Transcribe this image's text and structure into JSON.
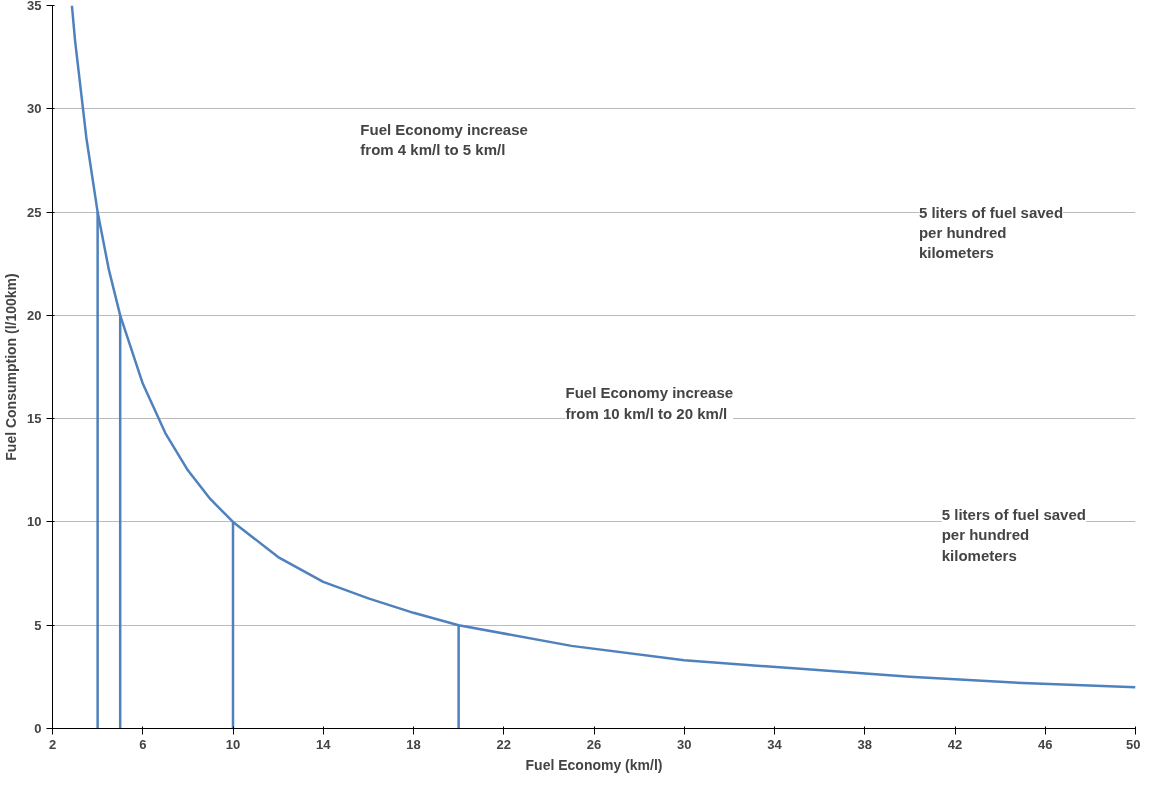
{
  "chart_data": {
    "type": "line",
    "xlabel": "Fuel Economy (km/l)",
    "ylabel": "Fuel Consumption (l/100km)",
    "xlim": [
      2,
      50
    ],
    "xticks": [
      2,
      6,
      10,
      14,
      18,
      22,
      26,
      30,
      34,
      38,
      42,
      46,
      50
    ],
    "ylim": [
      0,
      35
    ],
    "yticks": [
      0,
      5,
      10,
      15,
      20,
      25,
      30,
      35
    ],
    "grid": "y",
    "marker": "none",
    "line_style": "solid",
    "series": [
      {
        "color": "#4f81bd",
        "x": [
          2.86,
          3,
          3.5,
          4,
          4.5,
          5,
          6,
          7,
          8,
          9,
          10,
          12,
          14,
          16,
          18,
          20,
          25,
          30,
          35,
          40,
          45,
          50
        ],
        "values": [
          35,
          33.3,
          28.6,
          25,
          22.2,
          20,
          16.7,
          14.3,
          12.5,
          11.1,
          10,
          8.3,
          7.1,
          6.3,
          5.6,
          5,
          4,
          3.3,
          2.9,
          2.5,
          2.2,
          2
        ]
      },
      {
        "color": "#4f81bd",
        "x": [
          4,
          4
        ],
        "values": [
          0,
          25
        ]
      },
      {
        "color": "#4f81bd",
        "x": [
          5,
          5
        ],
        "values": [
          0,
          20
        ]
      },
      {
        "color": "#4f81bd",
        "x": [
          10,
          10
        ],
        "values": [
          0,
          10
        ]
      },
      {
        "color": "#4f81bd",
        "x": [
          20,
          20
        ],
        "values": [
          0,
          5
        ]
      }
    ],
    "annotations": [
      "Fuel Economy increase\nfrom 4 km/l to 5 km/l",
      "Fuel Economy increase\nfrom 10 km/l to 20 km/l",
      "5 liters of fuel saved\nper hundred\nkilometers",
      "5 liters of fuel saved\nper hundred\nkilometers"
    ]
  }
}
